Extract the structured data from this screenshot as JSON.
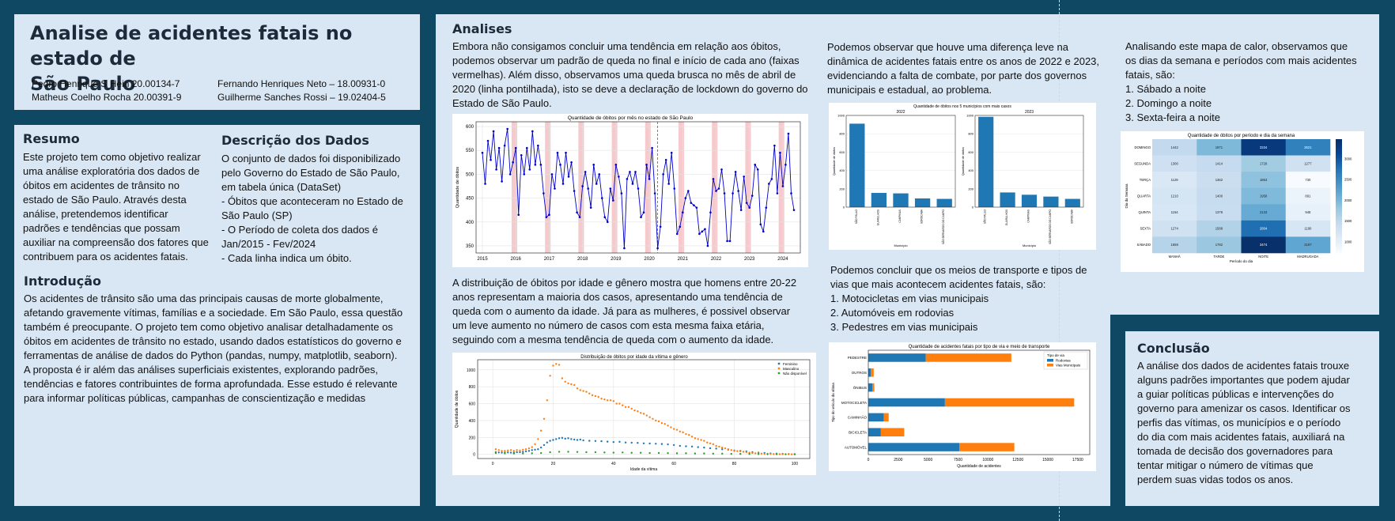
{
  "header": {
    "title_line1": "Analise de acidentes fatais no estado de",
    "title_line2": "São Paulo",
    "authors": [
      "Pedro Henrique S Hein 20.00134-7",
      "Matheus Coelho Rocha 20.00391-9",
      "Fernando Henriques Neto – 18.00931-0",
      "Guilherme Sanches Rossi – 19.02404-5"
    ]
  },
  "resumo": {
    "title": "Resumo",
    "lines": [
      "Este projeto tem como objetivo realizar",
      "uma análise exploratória dos dados de",
      "óbitos em acidentes de trânsito no",
      "estado de São Paulo. Através desta",
      "análise, pretendemos identificar",
      "padrões e tendências que possam",
      "auxiliar na compreensão dos fatores que",
      "contribuem para os acidentes fatais."
    ]
  },
  "descricao": {
    "title": "Descrição dos Dados",
    "lines": [
      "O conjunto de dados foi disponibilizado",
      "pelo Governo do Estado de São Paulo,",
      "em tabela única (DataSet)",
      "- Óbitos que aconteceram no Estado de",
      "São Paulo (SP)",
      "- O Período de coleta dos dados é",
      "Jan/2015 - Fev/2024",
      "- Cada linha indica um óbito."
    ]
  },
  "introducao": {
    "title": "Introdução",
    "lines": [
      "Os acidentes de trânsito são uma das principais causas de morte globalmente,",
      "afetando gravemente vítimas, famílias e a sociedade. Em São Paulo, essa questão",
      "também é preocupante. O projeto tem como objetivo analisar detalhadamente os",
      "óbitos em acidentes de trânsito no estado, usando dados estatísticos do governo e",
      "ferramentas de análise de dados do Python (pandas, numpy, matplotlib, seaborn).",
      "A proposta é ir além das análises superficiais existentes, explorando padrões,",
      "tendências e fatores contribuintes de forma aprofundada. Esse estudo é relevante",
      "para informar políticas públicas, campanhas de conscientização e medidas"
    ]
  },
  "analises": {
    "title": "Analises",
    "p1": [
      "Embora não consigamos concluir uma tendência em relação aos óbitos,",
      "podemos observar um padrão de queda no final e início de cada ano (faixas",
      "vermelhas). Além disso, observamos uma queda brusca no mês de abril de",
      "2020 (linha pontilhada), isto se deve a declaração de lockdown do governo do",
      "Estado de São Paulo."
    ],
    "p2": [
      "A distribuição de óbitos por idade e gênero mostra que homens entre 20-22",
      "anos representam a maioria dos casos, apresentando uma tendência de",
      "queda com o aumento da idade. Já para as mulheres, é possivel observar",
      "um leve aumento no número de casos com esta mesma faixa etária,",
      "seguindo com a mesma tendência de queda com o aumento da idade."
    ],
    "p3": [
      "Podemos observar que houve uma diferença leve na",
      "dinâmica de acidentes fatais entre os anos de 2022 e 2023,",
      "evidenciando a falta de combate, por parte dos governos",
      "municipais e estadual, ao problema."
    ],
    "p4": [
      "Podemos concluir que os meios de transporte e tipos de",
      "vias que mais acontecem acidentes fatais, são:",
      "1. Motocicletas em vias municipais",
      "2. Automóveis em rodovias",
      "3. Pedestres em vias municipais"
    ],
    "p5": [
      "Analisando este mapa de calor, observamos que",
      "os dias da semana e períodos com mais acidentes",
      "fatais, são:",
      "1. Sábado a noite",
      "2. Domingo a noite",
      "3. Sexta-feira a noite"
    ]
  },
  "conclusao": {
    "title": "Conclusão",
    "lines": [
      "A análise dos dados de acidentes fatais trouxe",
      "alguns padrões importantes que podem ajudar",
      "a guiar políticas públicas e intervenções do",
      "governo para amenizar os casos. Identificar os",
      "perfis das vítimas, os municípios e o período",
      "do dia com mais acidentes fatais, auxiliará na",
      "tomada de decisão dos governadores para",
      "tentar mitigar o número de vítimas que",
      "perdem suas vidas todos os anos."
    ]
  },
  "chart_data": [
    {
      "type": "line",
      "title": "Quantidade de óbitos por mês no estado de São Paulo",
      "xlabel": "",
      "ylabel": "Quantidade de óbitos",
      "x_ticks": [
        "2015",
        "2016",
        "2017",
        "2018",
        "2019",
        "2020",
        "2021",
        "2022",
        "2023",
        "2024"
      ],
      "y_ticks": [
        350,
        400,
        450,
        500,
        550,
        600
      ],
      "ylim": [
        335,
        610
      ],
      "start": "2015-01",
      "values": [
        545,
        480,
        570,
        530,
        590,
        510,
        555,
        485,
        560,
        595,
        500,
        525,
        555,
        415,
        540,
        500,
        555,
        510,
        590,
        520,
        560,
        520,
        460,
        410,
        415,
        500,
        470,
        545,
        520,
        480,
        545,
        495,
        525,
        465,
        420,
        410,
        475,
        505,
        470,
        430,
        520,
        480,
        500,
        450,
        410,
        400,
        470,
        445,
        520,
        495,
        460,
        345,
        490,
        505,
        480,
        505,
        470,
        410,
        420,
        520,
        490,
        555,
        460,
        345,
        390,
        500,
        530,
        480,
        545,
        470,
        375,
        390,
        420,
        450,
        465,
        440,
        435,
        430,
        375,
        380,
        385,
        350,
        420,
        490,
        465,
        470,
        510,
        460,
        360,
        360,
        460,
        505,
        465,
        425,
        495,
        440,
        430,
        455,
        520,
        510,
        395,
        380,
        430,
        480,
        490,
        560,
        460,
        545,
        475,
        520,
        585,
        460,
        425
      ],
      "shaded_bands": [
        "2015-12/2016-01",
        "2016-12/2017-01",
        "2017-12/2018-01",
        "2018-12/2019-01",
        "2019-12/2020-01",
        "2020-12/2021-01",
        "2021-12/2022-01",
        "2022-12/2023-01",
        "2023-12/2024-01"
      ],
      "vline": "2020-04",
      "color": "#0000cc",
      "grid": true
    },
    {
      "type": "scatter",
      "title": "Distribuição de óbitos por idade da vítima e gênero",
      "xlabel": "Idade da vítima",
      "ylabel": "Quantidade de óbitos",
      "x_ticks": [
        0,
        20,
        40,
        60,
        80,
        100
      ],
      "y_ticks": [
        0,
        200,
        400,
        600,
        800,
        1000
      ],
      "xlim": [
        -5,
        105
      ],
      "ylim": [
        -50,
        1120
      ],
      "legend_position": "top-right",
      "series": [
        {
          "name": "Feminino",
          "color": "#1f77b4",
          "x": [
            1,
            2,
            3,
            4,
            5,
            6,
            7,
            8,
            9,
            10,
            11,
            12,
            13,
            14,
            15,
            16,
            17,
            18,
            19,
            20,
            21,
            22,
            23,
            24,
            25,
            26,
            27,
            28,
            29,
            30,
            32,
            34,
            36,
            38,
            40,
            42,
            44,
            46,
            48,
            50,
            52,
            54,
            56,
            58,
            60,
            62,
            64,
            66,
            68,
            70,
            72,
            74,
            76,
            78,
            80,
            82,
            84,
            86,
            88,
            90,
            92,
            94,
            96,
            98,
            100
          ],
          "y": [
            25,
            22,
            20,
            20,
            22,
            20,
            20,
            25,
            25,
            30,
            35,
            40,
            50,
            55,
            60,
            80,
            110,
            140,
            160,
            170,
            180,
            190,
            195,
            185,
            190,
            180,
            175,
            170,
            175,
            165,
            160,
            158,
            155,
            150,
            145,
            148,
            140,
            138,
            135,
            130,
            128,
            125,
            122,
            118,
            110,
            100,
            95,
            92,
            85,
            80,
            72,
            68,
            60,
            55,
            45,
            40,
            35,
            25,
            20,
            15,
            10,
            8,
            5,
            3,
            2
          ]
        },
        {
          "name": "Masculino",
          "color": "#ff7f0e",
          "x": [
            1,
            2,
            3,
            4,
            5,
            6,
            7,
            8,
            9,
            10,
            11,
            12,
            13,
            14,
            15,
            16,
            17,
            18,
            19,
            20,
            21,
            22,
            23,
            24,
            25,
            26,
            27,
            28,
            29,
            30,
            31,
            32,
            33,
            34,
            35,
            36,
            37,
            38,
            39,
            40,
            41,
            42,
            43,
            44,
            45,
            46,
            47,
            48,
            49,
            50,
            51,
            52,
            53,
            54,
            55,
            56,
            57,
            58,
            59,
            60,
            61,
            62,
            63,
            64,
            65,
            66,
            67,
            68,
            69,
            70,
            71,
            72,
            73,
            74,
            75,
            76,
            77,
            78,
            79,
            80,
            81,
            82,
            83,
            84,
            85,
            86,
            87,
            88,
            89,
            90,
            91,
            92,
            93,
            94,
            95,
            96,
            97,
            98,
            99,
            100
          ],
          "y": [
            60,
            50,
            40,
            40,
            45,
            50,
            40,
            50,
            45,
            55,
            60,
            70,
            85,
            120,
            180,
            280,
            420,
            640,
            930,
            1050,
            1070,
            1060,
            900,
            860,
            840,
            830,
            820,
            780,
            760,
            750,
            740,
            720,
            700,
            690,
            680,
            660,
            650,
            640,
            640,
            630,
            600,
            600,
            580,
            560,
            560,
            540,
            520,
            510,
            490,
            480,
            460,
            440,
            420,
            400,
            390,
            370,
            360,
            340,
            320,
            300,
            290,
            270,
            260,
            240,
            230,
            210,
            190,
            180,
            170,
            160,
            140,
            130,
            120,
            100,
            90,
            80,
            70,
            60,
            50,
            40,
            38,
            35,
            30,
            25,
            20,
            15,
            12,
            10,
            8,
            6,
            5,
            4,
            3,
            2,
            2,
            1,
            1,
            1,
            0,
            0
          ]
        },
        {
          "name": "Não disponível",
          "color": "#2ca02c",
          "x": [
            1,
            4,
            7,
            10,
            13,
            16,
            19,
            22,
            25,
            28,
            31,
            34,
            37,
            40,
            43,
            46,
            49,
            52,
            55,
            58,
            61,
            64,
            67,
            70,
            73,
            76,
            79,
            82,
            85,
            88,
            91,
            94,
            97,
            100
          ],
          "y": [
            15,
            12,
            10,
            10,
            12,
            15,
            25,
            30,
            30,
            28,
            25,
            25,
            22,
            20,
            22,
            18,
            18,
            15,
            16,
            14,
            12,
            12,
            10,
            10,
            8,
            8,
            6,
            5,
            4,
            3,
            2,
            2,
            1,
            1
          ]
        }
      ]
    },
    {
      "type": "bar",
      "title": "Quantidade de óbitos nos 5 municípios com mais casos",
      "panels": [
        {
          "title": "2022",
          "categories": [
            "SÃO PAULO",
            "GUARULHOS",
            "CAMPINAS",
            "SOROCABA",
            "SÃO BERNARDO DO CAMPO"
          ],
          "values": [
            910,
            155,
            150,
            95,
            90
          ],
          "xlabel": "Município",
          "ylabel": "Quantidade de óbitos",
          "y_ticks": [
            0,
            200,
            400,
            600,
            800,
            1000
          ],
          "ylim": [
            0,
            1000
          ]
        },
        {
          "title": "2023",
          "categories": [
            "SÃO PAULO",
            "GUARULHOS",
            "CAMPINAS",
            "SÃO BERNARDO DO CAMPO",
            "SOROCABA"
          ],
          "values": [
            985,
            160,
            135,
            115,
            90
          ],
          "xlabel": "Município",
          "ylabel": "Quantidade de óbitos",
          "y_ticks": [
            0,
            200,
            400,
            600,
            800,
            1000
          ],
          "ylim": [
            0,
            1000
          ]
        }
      ],
      "color": "#1f77b4"
    },
    {
      "type": "bar",
      "orientation": "horizontal",
      "stacked": true,
      "title": "Quantidade de acidentes fatais por tipo de via e meio de transporte",
      "xlabel": "Quantidade de acidentes",
      "ylabel": "Tipo do veículo da vítima",
      "categories": [
        "PEDESTRE",
        "OUTROS",
        "ÔNIBUS",
        "MOTOCICLETA",
        "CAMINHÃO",
        "BICICLETA",
        "AUTOMÓVEL"
      ],
      "x_ticks": [
        0,
        2500,
        5000,
        7500,
        10000,
        12500,
        15000,
        17500
      ],
      "xlim": [
        0,
        18500
      ],
      "legend_title": "Tipo de via",
      "legend_position": "top-right",
      "series": [
        {
          "name": "Rodovias",
          "color": "#1f77b4",
          "values": [
            4800,
            200,
            350,
            6400,
            1300,
            1050,
            7600
          ]
        },
        {
          "name": "Vias Municipais",
          "color": "#ff7f0e",
          "values": [
            7150,
            250,
            150,
            10800,
            400,
            1950,
            4600
          ]
        }
      ]
    },
    {
      "type": "heatmap",
      "title": "Quantidade de óbitos por período e dia da semana",
      "xlabel": "Período do dia",
      "ylabel": "Dia da Semana",
      "columns": [
        "MANHÃ",
        "TARDE",
        "NOITE",
        "MADRUGADA"
      ],
      "rows": [
        "DOMINGO",
        "SEGUNDA",
        "TERÇA",
        "QUARTA",
        "QUINTA",
        "SEXTA",
        "SÁBADO"
      ],
      "values": [
        [
          1442,
          1971,
          3334,
          2621
        ],
        [
          1300,
          1414,
          1728,
          1277
        ],
        [
          1129,
          1362,
          1863,
          730
        ],
        [
          1210,
          1400,
          1958,
          891
        ],
        [
          1154,
          1378,
          2133,
          948
        ],
        [
          1274,
          1588,
          2804,
          1190
        ],
        [
          1559,
          1782,
          3474,
          2197
        ]
      ],
      "colorbar_ticks": [
        1000,
        1500,
        2000,
        2500,
        3000
      ],
      "range": [
        730,
        3474
      ]
    }
  ]
}
